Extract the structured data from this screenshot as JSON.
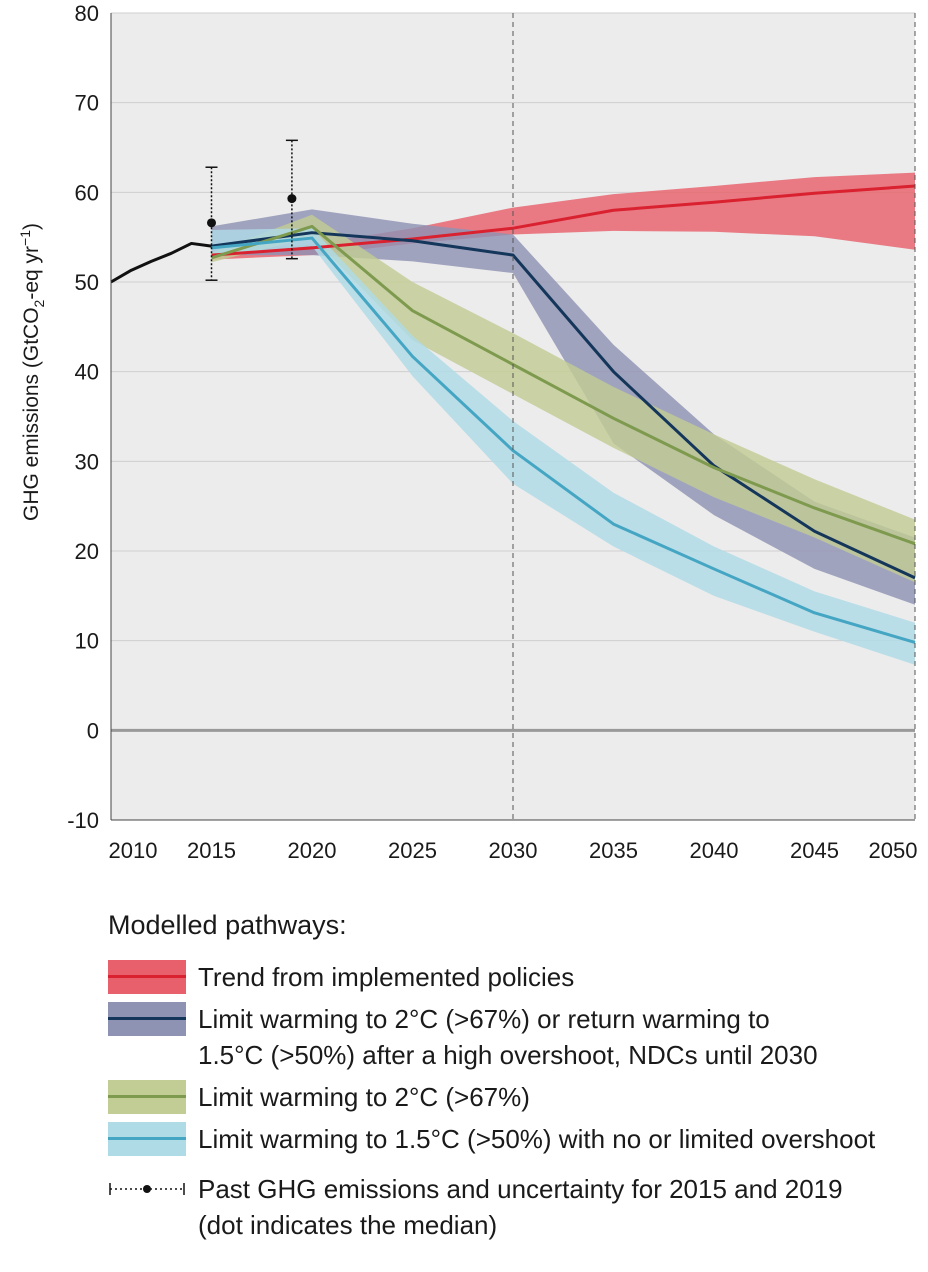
{
  "chart_data": {
    "type": "line",
    "title": "",
    "ylabel_main": "GHG emissions (GtCO",
    "ylabel_sub": "2",
    "ylabel_mid": "-eq yr",
    "ylabel_sup": "−1",
    "ylabel_end": ")",
    "xlabel": "",
    "ylim": [
      -10,
      80
    ],
    "xlim": [
      2010,
      2050
    ],
    "y_ticks": [
      "80",
      "70",
      "60",
      "50",
      "40",
      "30",
      "20",
      "10",
      "0",
      "-10"
    ],
    "y_tick_values": [
      80,
      70,
      60,
      50,
      40,
      30,
      20,
      10,
      0,
      -10
    ],
    "x_ticks": [
      "2010",
      "2015",
      "2020",
      "2025",
      "2030",
      "2035",
      "2040",
      "2045",
      "2050"
    ],
    "x_tick_values": [
      2010,
      2015,
      2020,
      2025,
      2030,
      2035,
      2040,
      2045,
      2050
    ],
    "grid": true,
    "colors": {
      "policies_band": "#e8606b",
      "policies_line": "#d9212f",
      "ndc_band": "#8f93b3",
      "ndc_line": "#14365a",
      "two_band": "#c2cc95",
      "two_line": "#7e9a4e",
      "onefive_band": "#aedbe6",
      "onefive_line": "#45a6c4",
      "history": "#111111",
      "grid": "#cfcfcf",
      "zero": "#999999"
    },
    "history": {
      "x": [
        2010,
        2011,
        2012,
        2013,
        2014,
        2015
      ],
      "y": [
        50.0,
        51.3,
        52.3,
        53.2,
        54.3,
        54.0
      ]
    },
    "uncertainty": [
      {
        "x": 2015,
        "median": 56.6,
        "low": 50.2,
        "high": 62.8
      },
      {
        "x": 2019,
        "median": 59.3,
        "low": 52.6,
        "high": 65.8
      }
    ],
    "reference_line_x": [
      2030,
      2050
    ],
    "series": [
      {
        "name": "Trend from implemented policies",
        "key": "policies",
        "x": [
          2015,
          2020,
          2025,
          2030,
          2035,
          2040,
          2045,
          2050
        ],
        "y": [
          53.0,
          53.8,
          54.8,
          56.0,
          58.0,
          58.9,
          59.9,
          60.7
        ],
        "low": [
          52.5,
          53.0,
          54.3,
          55.3,
          55.7,
          55.6,
          55.1,
          53.6
        ],
        "high": [
          53.5,
          54.2,
          56.0,
          58.3,
          59.8,
          60.7,
          61.7,
          62.2
        ]
      },
      {
        "name": "Limit warming to 2°C (>67%) or return warming to 1.5°C (>50%) after a high overshoot, NDCs until 2030",
        "key": "ndc",
        "x": [
          2015,
          2020,
          2025,
          2030,
          2035,
          2040,
          2045,
          2050
        ],
        "y": [
          54.0,
          55.5,
          54.6,
          53.0,
          40.0,
          29.5,
          22.2,
          17.0
        ],
        "low": [
          53.0,
          53.0,
          52.3,
          51.0,
          32.0,
          24.0,
          18.0,
          14.0
        ],
        "high": [
          56.2,
          58.1,
          56.5,
          55.3,
          43.0,
          33.0,
          25.5,
          21.5
        ]
      },
      {
        "name": "Limit warming to 2°C (>67%)",
        "key": "two",
        "x": [
          2015,
          2020,
          2025,
          2030,
          2035,
          2040,
          2045,
          2050
        ],
        "y": [
          52.7,
          56.2,
          46.8,
          40.8,
          34.8,
          29.3,
          24.8,
          20.8
        ],
        "low": [
          52.2,
          55.0,
          43.5,
          37.5,
          31.5,
          26.0,
          21.5,
          16.5
        ],
        "high": [
          53.3,
          57.5,
          50.0,
          44.3,
          38.3,
          33.0,
          28.0,
          23.5
        ]
      },
      {
        "name": "Limit warming to 1.5°C (>50%) with no or limited overshoot",
        "key": "onefive",
        "x": [
          2015,
          2020,
          2025,
          2030,
          2035,
          2040,
          2045,
          2050
        ],
        "y": [
          53.8,
          54.9,
          41.7,
          31.2,
          23.0,
          18.0,
          13.1,
          9.8
        ],
        "low": [
          53.0,
          54.0,
          39.5,
          27.5,
          20.5,
          15.0,
          11.0,
          7.3
        ],
        "high": [
          55.8,
          56.0,
          44.0,
          34.5,
          26.5,
          20.5,
          15.5,
          12.0
        ]
      }
    ]
  },
  "legend": {
    "title": "Modelled pathways:",
    "items": [
      {
        "label": "Trend from implemented policies"
      },
      {
        "label": "Limit warming to 2°C (>67%) or return warming to",
        "label2": "1.5°C (>50%) after a high overshoot, NDCs until 2030"
      },
      {
        "label": "Limit warming to 2°C (>67%)"
      },
      {
        "label": "Limit warming to 1.5°C (>50%) with no or limited overshoot"
      }
    ],
    "past": {
      "label": "Past GHG emissions and uncertainty for 2015 and 2019",
      "label2": "(dot indicates the median)"
    }
  }
}
